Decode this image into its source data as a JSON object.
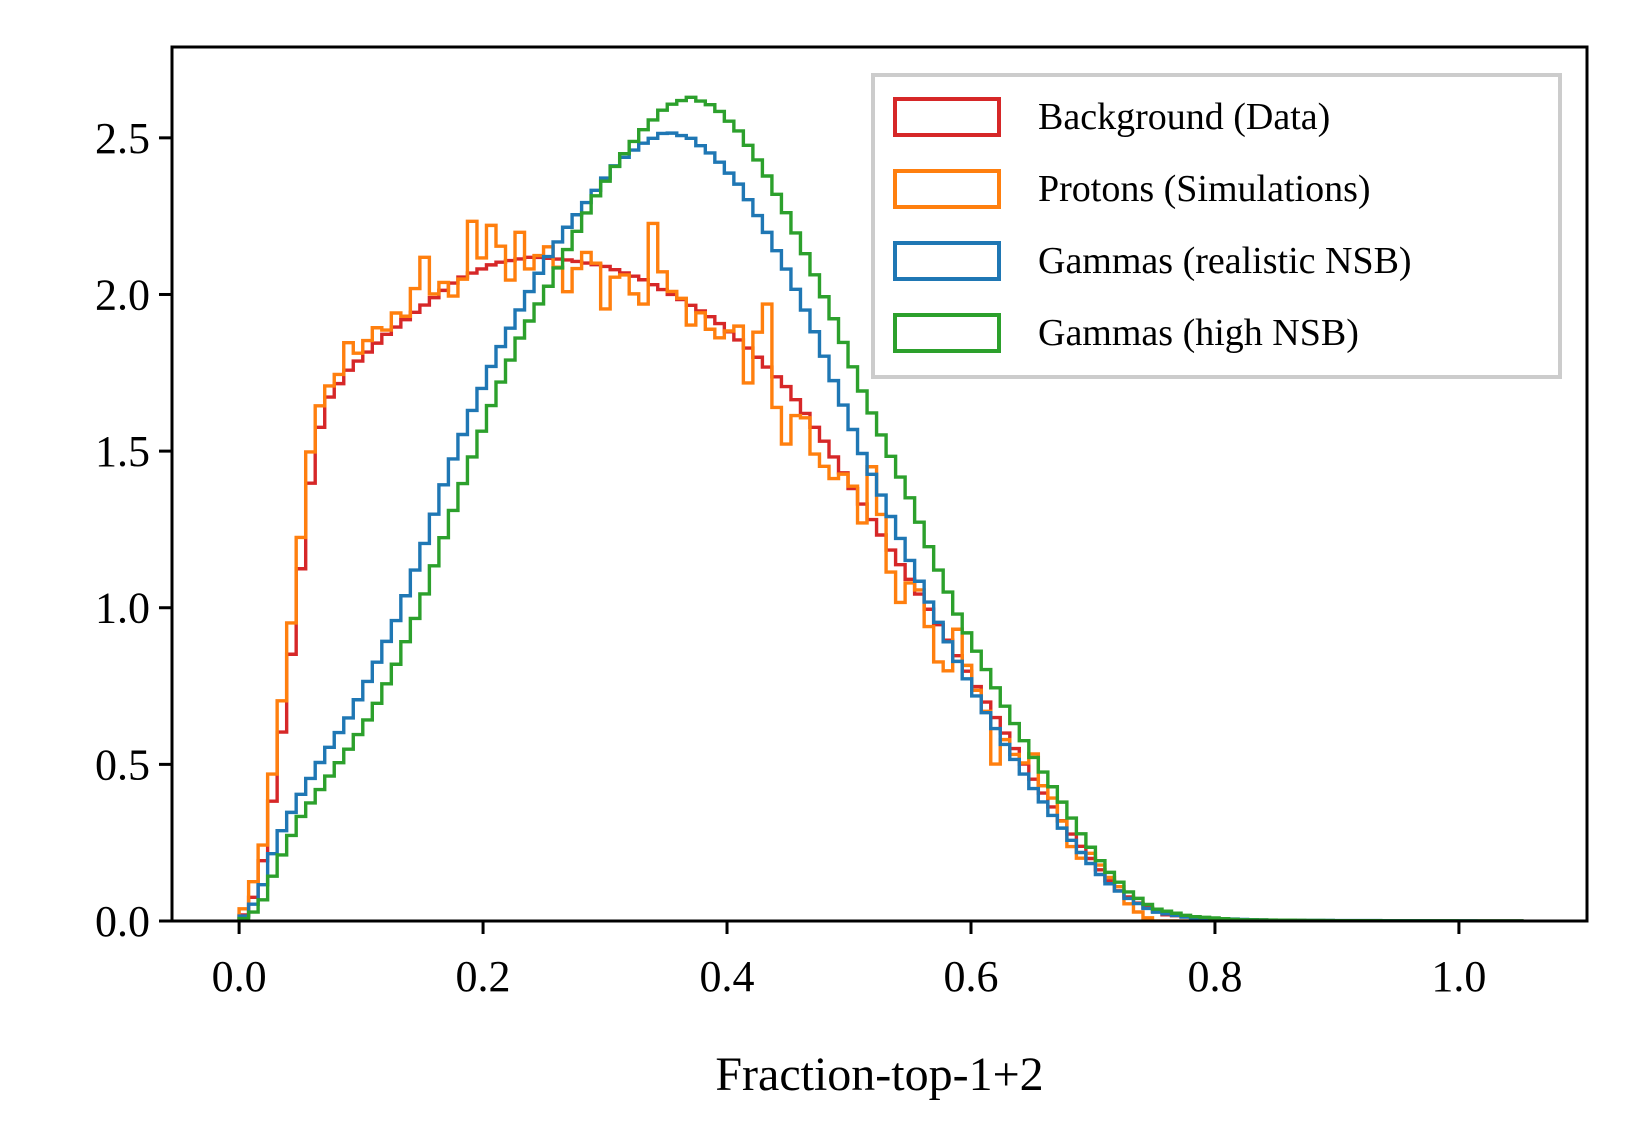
{
  "chart_data": {
    "type": "histogram",
    "title": "",
    "xlabel": "Fraction-top-1+2",
    "ylabel": "",
    "xlim": [
      -0.055,
      1.105
    ],
    "ylim": [
      0,
      2.79
    ],
    "grid": false,
    "legend_position": "top-right",
    "bin_width": 0.0078,
    "x_ticks": [
      0.0,
      0.2,
      0.4,
      0.6,
      0.8,
      1.0
    ],
    "x_tick_labels": [
      "0.0",
      "0.2",
      "0.4",
      "0.6",
      "0.8",
      "1.0"
    ],
    "y_ticks": [
      0.0,
      0.5,
      1.0,
      1.5,
      2.0,
      2.5
    ],
    "y_tick_labels": [
      "0.0",
      "0.5",
      "1.0",
      "1.5",
      "2.0",
      "2.5"
    ],
    "series": [
      {
        "name": "Background (Data)",
        "color": "#d62728",
        "points": [
          [
            0.0,
            0.0
          ],
          [
            0.01,
            0.05
          ],
          [
            0.02,
            0.2
          ],
          [
            0.03,
            0.45
          ],
          [
            0.04,
            0.75
          ],
          [
            0.05,
            1.1
          ],
          [
            0.06,
            1.45
          ],
          [
            0.07,
            1.65
          ],
          [
            0.09,
            1.76
          ],
          [
            0.12,
            1.87
          ],
          [
            0.15,
            1.96
          ],
          [
            0.18,
            2.05
          ],
          [
            0.21,
            2.1
          ],
          [
            0.24,
            2.12
          ],
          [
            0.27,
            2.11
          ],
          [
            0.3,
            2.09
          ],
          [
            0.33,
            2.05
          ],
          [
            0.36,
            1.99
          ],
          [
            0.39,
            1.92
          ],
          [
            0.42,
            1.82
          ],
          [
            0.45,
            1.7
          ],
          [
            0.48,
            1.53
          ],
          [
            0.5,
            1.4
          ],
          [
            0.53,
            1.21
          ],
          [
            0.56,
            1.03
          ],
          [
            0.59,
            0.84
          ],
          [
            0.62,
            0.65
          ],
          [
            0.65,
            0.46
          ],
          [
            0.68,
            0.29
          ],
          [
            0.7,
            0.19
          ],
          [
            0.72,
            0.1
          ],
          [
            0.74,
            0.05
          ],
          [
            0.76,
            0.02
          ],
          [
            0.8,
            0.005
          ],
          [
            0.9,
            0.0
          ],
          [
            1.05,
            0.0
          ]
        ]
      },
      {
        "name": "Protons (Simulations)",
        "color": "#ff7f0e",
        "points": [
          [
            0.0,
            0.0
          ],
          [
            0.01,
            0.1
          ],
          [
            0.02,
            0.25
          ],
          [
            0.03,
            0.55
          ],
          [
            0.04,
            0.85
          ],
          [
            0.05,
            1.2
          ],
          [
            0.06,
            1.55
          ],
          [
            0.07,
            1.7
          ],
          [
            0.08,
            1.72
          ],
          [
            0.09,
            1.85
          ],
          [
            0.1,
            1.8
          ],
          [
            0.11,
            1.9
          ],
          [
            0.12,
            1.88
          ],
          [
            0.13,
            1.95
          ],
          [
            0.14,
            1.92
          ],
          [
            0.15,
            2.15
          ],
          [
            0.16,
            2.0
          ],
          [
            0.17,
            2.05
          ],
          [
            0.18,
            1.95
          ],
          [
            0.19,
            2.25
          ],
          [
            0.2,
            2.1
          ],
          [
            0.21,
            2.28
          ],
          [
            0.22,
            2.0
          ],
          [
            0.23,
            2.2
          ],
          [
            0.24,
            2.05
          ],
          [
            0.25,
            2.18
          ],
          [
            0.26,
            2.1
          ],
          [
            0.27,
            2.0
          ],
          [
            0.28,
            2.12
          ],
          [
            0.29,
            2.15
          ],
          [
            0.3,
            1.95
          ],
          [
            0.31,
            2.08
          ],
          [
            0.32,
            2.05
          ],
          [
            0.33,
            1.92
          ],
          [
            0.34,
            2.25
          ],
          [
            0.35,
            2.0
          ],
          [
            0.36,
            2.02
          ],
          [
            0.37,
            1.9
          ],
          [
            0.38,
            1.95
          ],
          [
            0.39,
            1.85
          ],
          [
            0.4,
            1.88
          ],
          [
            0.41,
            1.9
          ],
          [
            0.42,
            1.65
          ],
          [
            0.43,
            2.1
          ],
          [
            0.44,
            1.65
          ],
          [
            0.45,
            1.5
          ],
          [
            0.46,
            1.68
          ],
          [
            0.47,
            1.5
          ],
          [
            0.48,
            1.45
          ],
          [
            0.49,
            1.4
          ],
          [
            0.5,
            1.45
          ],
          [
            0.51,
            1.25
          ],
          [
            0.52,
            1.48
          ],
          [
            0.53,
            1.2
          ],
          [
            0.54,
            1.0
          ],
          [
            0.55,
            1.08
          ],
          [
            0.56,
            1.05
          ],
          [
            0.57,
            0.85
          ],
          [
            0.58,
            0.78
          ],
          [
            0.59,
            0.95
          ],
          [
            0.6,
            0.75
          ],
          [
            0.61,
            0.72
          ],
          [
            0.62,
            0.5
          ],
          [
            0.63,
            0.6
          ],
          [
            0.64,
            0.48
          ],
          [
            0.65,
            0.55
          ],
          [
            0.66,
            0.42
          ],
          [
            0.67,
            0.38
          ],
          [
            0.68,
            0.25
          ],
          [
            0.69,
            0.2
          ],
          [
            0.7,
            0.22
          ],
          [
            0.71,
            0.15
          ],
          [
            0.72,
            0.12
          ],
          [
            0.73,
            0.05
          ],
          [
            0.74,
            0.02
          ],
          [
            0.75,
            0.0
          ],
          [
            1.05,
            0.0
          ]
        ]
      },
      {
        "name": "Gammas (realistic NSB)",
        "color": "#1f77b4",
        "points": [
          [
            0.0,
            0.0
          ],
          [
            0.01,
            0.04
          ],
          [
            0.02,
            0.12
          ],
          [
            0.03,
            0.25
          ],
          [
            0.05,
            0.4
          ],
          [
            0.07,
            0.53
          ],
          [
            0.09,
            0.65
          ],
          [
            0.11,
            0.8
          ],
          [
            0.13,
            0.97
          ],
          [
            0.15,
            1.18
          ],
          [
            0.17,
            1.42
          ],
          [
            0.19,
            1.62
          ],
          [
            0.21,
            1.8
          ],
          [
            0.23,
            1.95
          ],
          [
            0.25,
            2.1
          ],
          [
            0.27,
            2.22
          ],
          [
            0.29,
            2.32
          ],
          [
            0.31,
            2.42
          ],
          [
            0.33,
            2.48
          ],
          [
            0.35,
            2.52
          ],
          [
            0.37,
            2.5
          ],
          [
            0.39,
            2.44
          ],
          [
            0.41,
            2.35
          ],
          [
            0.43,
            2.22
          ],
          [
            0.45,
            2.07
          ],
          [
            0.47,
            1.9
          ],
          [
            0.49,
            1.7
          ],
          [
            0.51,
            1.5
          ],
          [
            0.53,
            1.33
          ],
          [
            0.55,
            1.15
          ],
          [
            0.57,
            0.98
          ],
          [
            0.59,
            0.82
          ],
          [
            0.61,
            0.68
          ],
          [
            0.63,
            0.55
          ],
          [
            0.65,
            0.43
          ],
          [
            0.67,
            0.32
          ],
          [
            0.69,
            0.22
          ],
          [
            0.71,
            0.13
          ],
          [
            0.73,
            0.07
          ],
          [
            0.75,
            0.03
          ],
          [
            0.78,
            0.01
          ],
          [
            0.85,
            0.002
          ],
          [
            1.05,
            0.0
          ]
        ]
      },
      {
        "name": "Gammas (high NSB)",
        "color": "#2ca02c",
        "points": [
          [
            0.0,
            0.0
          ],
          [
            0.01,
            0.02
          ],
          [
            0.02,
            0.07
          ],
          [
            0.03,
            0.17
          ],
          [
            0.05,
            0.33
          ],
          [
            0.07,
            0.44
          ],
          [
            0.09,
            0.55
          ],
          [
            0.11,
            0.67
          ],
          [
            0.13,
            0.83
          ],
          [
            0.15,
            1.02
          ],
          [
            0.17,
            1.25
          ],
          [
            0.19,
            1.47
          ],
          [
            0.21,
            1.68
          ],
          [
            0.23,
            1.86
          ],
          [
            0.25,
            2.0
          ],
          [
            0.27,
            2.15
          ],
          [
            0.29,
            2.3
          ],
          [
            0.31,
            2.42
          ],
          [
            0.33,
            2.52
          ],
          [
            0.35,
            2.6
          ],
          [
            0.37,
            2.63
          ],
          [
            0.39,
            2.6
          ],
          [
            0.41,
            2.52
          ],
          [
            0.43,
            2.4
          ],
          [
            0.45,
            2.25
          ],
          [
            0.47,
            2.08
          ],
          [
            0.49,
            1.9
          ],
          [
            0.51,
            1.7
          ],
          [
            0.53,
            1.52
          ],
          [
            0.55,
            1.35
          ],
          [
            0.57,
            1.15
          ],
          [
            0.59,
            0.97
          ],
          [
            0.61,
            0.82
          ],
          [
            0.63,
            0.67
          ],
          [
            0.65,
            0.53
          ],
          [
            0.67,
            0.41
          ],
          [
            0.69,
            0.28
          ],
          [
            0.71,
            0.17
          ],
          [
            0.73,
            0.09
          ],
          [
            0.75,
            0.04
          ],
          [
            0.78,
            0.015
          ],
          [
            0.82,
            0.004
          ],
          [
            0.9,
            0.001
          ],
          [
            1.05,
            0.0
          ]
        ]
      }
    ]
  }
}
